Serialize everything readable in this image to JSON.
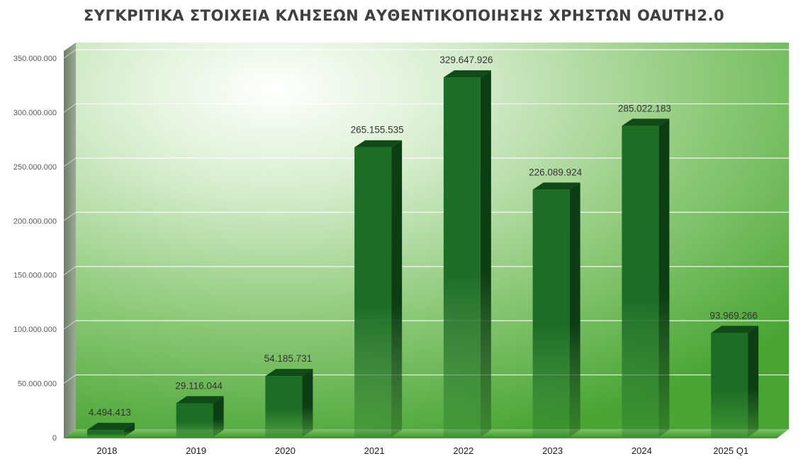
{
  "chart_data": {
    "type": "bar",
    "title": "ΣΥΓΚΡΙΤΙΚΑ ΣΤΟΙΧΕΙΑ ΚΛΗΣΕΩΝ ΑΥΘΕΝΤΙΚΟΠΟΙΗΣΗΣ ΧΡΗΣΤΩΝ OAUTH2.0",
    "xlabel": "",
    "ylabel": "",
    "categories": [
      "2018",
      "2019",
      "2020",
      "2021",
      "2022",
      "2023",
      "2024",
      "2025 Q1"
    ],
    "values": [
      4494413,
      29116044,
      54185731,
      265155535,
      329647926,
      226089924,
      285022183,
      93969266
    ],
    "value_labels": [
      "4.494.413",
      "29.116.044",
      "54.185.731",
      "265.155.535",
      "329.647.926",
      "226.089.924",
      "285.022.183",
      "93.969.266"
    ],
    "ylim": [
      0,
      350000000
    ],
    "yticks": [
      0,
      50000000,
      100000000,
      150000000,
      200000000,
      250000000,
      300000000,
      350000000
    ],
    "ytick_labels": [
      "0",
      "50.000.000",
      "100.000.000",
      "150.000.000",
      "200.000.000",
      "250.000.000",
      "300.000.000",
      "350.000.000"
    ],
    "grid": true,
    "legend": "none",
    "style": "3d-column",
    "colors": {
      "bar_front": "#1c6b26",
      "bar_top": "#0f4a17",
      "bar_side": "#0b3a12",
      "plot_bg_light": "#ffffff",
      "plot_bg_dark": "#4fa83a",
      "wall_left": "#7c8c78",
      "floor": "#3c9a2a"
    }
  }
}
